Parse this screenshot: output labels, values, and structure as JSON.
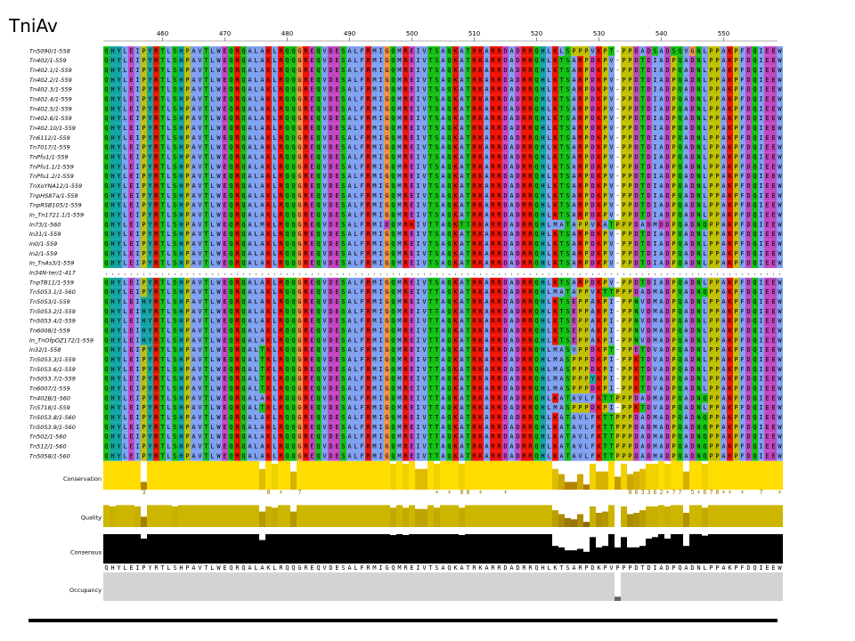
{
  "header": {
    "title": "TniAv"
  },
  "ruler": {
    "ticks": [
      460,
      470,
      480,
      490,
      500,
      510,
      520,
      530,
      540,
      550
    ]
  },
  "sequences": [
    {
      "name": "Tn5090/1-558",
      "residues": "QHYLEIPYRTLSHPAVTLWEQRQALAKLRQQGREQVDESALFRMIGQMREIVTSAQKATRKARRDADRRQHLKLSPPPVKPT-PPDADSADSQVGNLPPAKPFEQIEEW"
    },
    {
      "name": "Tn402/1-559",
      "residues": "QHYLEIPYRTLSHPAVTLWEQRQALAKLRQQGREQVDESALFRMIGQMREIVTSAQKATRKARRDADRRQHLKTSARPDKPV-PPDTDIADPQADNLPPAKPFDQIEEW"
    },
    {
      "name": "Tn402.1/1-559",
      "residues": "QHYLEIPYRTLSHPAVTLWEQRQALAKLRQQGREQVDESALFRMIGQMREIVTSAQKATRKARRDADRRQHLKTSARPDKPV-PPDTDIADPQADNLPPAKPFDQIEEW"
    },
    {
      "name": "Tn402.2/1-559",
      "residues": "QHYLEIPYRTLSHPAVTLWEQRQALAKLRQQGREQVDESALFRMIGQMREIVTSAQKATRKARRDADRRQHLKTSARPDKPV-PPDTDIADPQADNLPPAKPFDQIEEW"
    },
    {
      "name": "Tn402.3/1-559",
      "residues": "QHYLEIPYRTLSHPAVTLWEQRQALAKLRQQGREQVDESALFRMIGQMREIVTSAQKATRKARRDADRRQHLKTSARPDKPV-PPDTDIADPQADNLPPAKPFDQIEEW"
    },
    {
      "name": "Tn402.4/1-559",
      "residues": "QHYLEIPYRTLSHPAVTLWEQRQALAKLRQQGREQVDESALFRMIGQMREIVTSAQKATRKARRDADRRQHLKTSARPDKPV-PPDTDIADPQADNLPPAKPFDQIEEW"
    },
    {
      "name": "Tn402.5/1-559",
      "residues": "QHYLEIPYRTLSHPAVTLWEQRQALAKLRQQGREQVDESALFRMIGQMREIVTSAQKATRKARRDADRRQHLKTSARPDKPV-PPDTDIADPQADNLPPAKPFDQIEEW"
    },
    {
      "name": "Tn402.6/1-559",
      "residues": "QHYLEIPYRTLSHPAVTLWEQRQALAKLRQQGREQVDESALFRMIGQMREIVTSAQKATRKARRDADRRQHLKTSARPDKPV-PPDTDIADPQADNLPPAKPFDQIEEW"
    },
    {
      "name": "Tn402.10/1-559",
      "residues": "QHYLEIPYRTLSHPAVTLWEQRQALAKLRQQGREQVDESALFRMIGQMREIVTSAQKATRKARRDADRRQHLKTSARPDKPV-PPDTDIADPQADNLPPAKPFDQIEEW"
    },
    {
      "name": "Tn6112/1-559",
      "residues": "QHYLEIPYRTLSHPAVTLWEQRQALAKLRQQGREQVDESALFRMIGQMREIVTSAQKATRKARRDADRRQHLKTSARPDKPV-PPDTDIADPQADNLPPAKPFDQIEEW"
    },
    {
      "name": "Tn7017/1-559",
      "residues": "QHYLEIPYRTLSHPAVTLWEQRQALAKLRQQGREQVDESALFRMIGQMREIVTSAQKATRKARRDADRRQHLKTSARPDKPV-PPDTDIADPQADNLPPAKPFDQIEEW"
    },
    {
      "name": "TnPfu1/1-559",
      "residues": "QHYLEIPYRTLSHPAVTLWEQRQALAKLRQQGREQVDESALFRMIGQMREIVTSAQKATRKARRDADRRQHLKTSARPDKPV-PPDTDIADPQADNLPPAKPFDQIEEW"
    },
    {
      "name": "TnPfu1.1/1-559",
      "residues": "QHYLEIPYRTLSHPAVTLWEQRQALAKLRQQGREQVDESALFRMIGQMREIVTSAQKATRKARRDADRRQHLKTSARPDKPV-PPDTDIADPQADNLPPAKPFDQIEEW"
    },
    {
      "name": "TnPfu1.2/1-559",
      "residues": "QHYLEIPYRTLSHPAVTLWEQRQALAKLRQQGREQVDESALFRMIGQMREIVTSAQKATRKARRDADRRQHLKTSARPDKPV-PPDTDIADPQADNLPPAKPFDQIEEW"
    },
    {
      "name": "TnXoYNA12/1-559",
      "residues": "QHYLEIPYRTLSHPAVTLWEQRQALAKLRQQGREQVDESALFRMIGQMREIVTSAQKATRKARRDADRRQHLKTSARPDKPV-PPDTDIADPQADNLPPAKPFDQIEEW"
    },
    {
      "name": "TnpHS87a/1-559",
      "residues": "QHYLEIPYRTLSHPAVTLWEQRQALAKLRQQGREQVDESALFRMIGQMREIVTSAQKATRKARRDADRRQHLKTSARPDKPV-PPDTDIADPQADNLPPAKPFDQIEEW"
    },
    {
      "name": "TnpRSB105/1-559",
      "residues": "QHYLEIPYRTLSHPAVTLWEQRQALAKLRQQGREQVDESALFRMIGQMREIVTSAQKATRKARRDADRRQHLKTSARPDKPV-PPDTDIADPQADNLPPAKPFDQIEEW"
    },
    {
      "name": "In_Tn1721.1/1-559",
      "residues": "QHYLEIPYRTLSHPAVTLWEQRQALAKLRQQGREQVDESALFRMIGQMREIVTSAQKATRKARRDADRRQHLKTSARPDKPV-PPDTDIADPQADNLPPAKPFDQIEEW"
    },
    {
      "name": "In73/1-560",
      "residues": "QHYLEIPYRTLSHPAVTLWEQRQALMKLRQQGREQVDESALFRMIDQMRKIVTTAQKTTRKARRDADRRQHLMATAPPVKATPPPDADMDDPQADNQPPAKPFDQIEEW"
    },
    {
      "name": "In31/1-559",
      "residues": "QHYLEIPYRTLSHPAVTLWEQRQALAKLRQQGREQVDESALFRMIGQMREIVTSAQKATRKARRDADRRQHLKTSARPDKPV-PPDTDIADPQADNLPPAKPFDQIEEW"
    },
    {
      "name": "In0/1-559",
      "residues": "QHYLEIPYRTLSHPAVTLWEQRQALAKLRQQGREQVDESALFRMIGQMREIVTSAQKATRKARRDADRRQHLKTSARPDKPV-PPDTDIADPQADNLPPAKPFDQIEEW"
    },
    {
      "name": "In2/1-559",
      "residues": "QHYLEIPYRTLSHPAVTLWEQRQALAKLRQQGREQVDESALFRMIGQMREIVTSAQKATRKARRDADRRQHLKTSARPDKPV-PPDTDIADPQADNLPPAKPFDQIEEW"
    },
    {
      "name": "In_TnAs3/1-559",
      "residues": "QHYLEIPYRTLSHPAVTLWEQRQALAKLRQQGREQVDESALFRMIGQMREIVTSAQKATRKARRDADRRQHLKTSARPDKPV-PPDTDIADPQADNLPPAKPFDQIEEW"
    },
    {
      "name": "In34N-ter/1-417",
      "residues": "............................................................................................................."
    },
    {
      "name": "TnpTB11/1-559",
      "residues": "QHYLEIPYRTLSHPAVTLWEQRQALAKLRQQGREQVDESALFRMIGQMREIVTSAQKATRKARRDADRRQHLKTSARPDKPV-PPDTDIADPQADNLPPAKPFDQIEEW"
    },
    {
      "name": "Tn5053.1/1-560",
      "residues": "QHYLEIPYRTLSHPAVTLWEQRQALAKLRQQGREQVDESALFRMIGQMREIVTTAQKATRKARRDADRRQHLMATAPPVKTTPPPDADMADPQADNQPPAKPFDQIEEW"
    },
    {
      "name": "Tn5053/1-559",
      "residues": "QHYLEIHYRTLSHPAVTLWEQRQALAKLRQQGREQVDESALFRMIGQMREIVTTAQKATRKARRDADRRQHLKTSEPPAKPI-PPNVDMADPQADNLPPAKPFDQIEEW"
    },
    {
      "name": "Tn5053.2/1-559",
      "residues": "QHYLEIHYRTLSHPAVTLWEQRQALAKLRQQGREQVDESALFRMIGQMREIVTTAQKATRKARRDADRRQHLKTSEPPAKPI-PPNVDMADPQADNLPPAKPFDQIEEW"
    },
    {
      "name": "Tn5053.4/1-559",
      "residues": "QHYLEIHYRTLSHPAVTLWEQRQALAKLRQQGREQVDESALFRMIGQMREIVTTAQKATRKARRDADRRQHLKTSEPPAKPI-PPNVDMADPQADNLPPAKPFDQIEEW"
    },
    {
      "name": "Tn6008/1-559",
      "residues": "QHYLEIHYRTLSHPAVTLWEQRQALAKLRQQGREQVDESALFRMIGQMREIVTTAQKATRKARRDADRRQHLKTSEPPAKPI-PPNVDMADPQADNLPPAKPFDQIEEW"
    },
    {
      "name": "In_TnOfpOZ172/1-559",
      "residues": "QHYLEIHYRTLSHPAVTLWEQRQALAKLRQQGREQVDESALFRMIGQMREIVTTAQKATRKARRDADRRQHLKTSEPPAKPI-PPNVDMADPQADNLPPAKPFDQIEEW"
    },
    {
      "name": "In32/1-558",
      "residues": "QHYLEIPYRTLSHPAVTLWEQRQALTKLRQQGREQVDESALFRMIGQMREIVTTAQKATRKARRDADRRQHLMASVPPDKPT-PPETDVADPQADNLPPAKPFDQIEEW"
    },
    {
      "name": "Tn5053.3/1-559",
      "residues": "QHYLEIPYRTLSHPAVTLWEQRQALTKLRQQGREQVDESALFRMIGQMREIVTTAQKATRKARRDADRRQHLMASPPPDKPI-PPKTDVADPQADNLPPAKPFDQIEEW"
    },
    {
      "name": "Tn5053.6/1-559",
      "residues": "QHYLEIPYRTLSHPAVTLWEQRQALTKLRQQGREQVDESALFRMIGQMREIVTTAQKATRKARRDADRRQHLMASPPPDKPI-PPKTDVADPQADNLPPAKPFDQIEEW"
    },
    {
      "name": "Tn5053.7/1-559",
      "residues": "QHYLEIPYRTLSHPAVTLWEQRQALTKLRQQGREQVDESALFRMIGQMREIVTTAQKATRKARRDADRRQHLMASPPPYKPI-PPKTDVADPQADNLPPAKPFDQIEEW"
    },
    {
      "name": "Tn6007/1-559",
      "residues": "QHYLEIPYRTLSHPAVTLWEQRQALTKLRQQGREQVDESALFRMIGQMREIVTTAQKATRKARRDADRRQHLMASPPPDKPI-PPKTDVADPQADNLPPAKPFDQIEEW"
    },
    {
      "name": "Tn402B/1-560",
      "residues": "QHYLEIPYRTLSHPAVTLWEQRQALAKLRQQGREQVDESALFRMIGQMREIVTTAQKATRKARRDADRRQHLKATAVLFKTTPPPDADMADPQADNQPPAKPFDQIEEW"
    },
    {
      "name": "Tn5718/1-559",
      "residues": "QHYLEIPYRTLSHPAVTLWEQRQALTKLRQQGREQVDESALFRMIGQMREIVTTAQKATRKARRDADRRQHLMASPPPDKPI-PPKTDVADPQADNLPPAKPFDQIEEW"
    },
    {
      "name": "Tn5053.8/1-560",
      "residues": "QHYLEIPYRTLSHPAVTLWEQRQALAKLRQQGREQVDESALFRMIGQMREIVTTAQKATRKARRDADRRQHLKATAVLFKTTPPPDADMADPQADNQPPAKPFDQIEEW"
    },
    {
      "name": "Tn5053.9/1-560",
      "residues": "QHYLEIPYRTLSHPAVTLWEQRQALAKLRQQGREQVDESALFRMIGQMREIVTTAQKATRKARRDADRRQHLKATAVLFKTTPPPDADMADPQADNQPPAKPFDQIEEW"
    },
    {
      "name": "Tn502/1-560",
      "residues": "QHYLEIPYRTLSHPAVTLWEQRQALAKLRQQGREQVDESALFRMIGQMREIVTTAQKATRKARRDADRRQHLKATAVLFKTTPPPDADMADPQADNQPPAKPFDQIEEW"
    },
    {
      "name": "Tn512/1-560",
      "residues": "QHYLEIPYRTLSHPAVTLWEQRQALAKLRQQGREQVDESALFRMIGQMREIVTTAQKATRKARRDADRRQHLKATAVLFKTTPPPDADMADPQADNQPPAKPFDQIEEW"
    },
    {
      "name": "Tn5058/1-560",
      "residues": "QHYLEIPYRTLSHPAVTLWEQRQALAKLRQQGREQVDESALFRMIGQMREIVTTAQKATRKARRDADRRQHLKATAVLFKTTPPPDADMADPQADNQPPAKPFDQIEEW"
    }
  ],
  "annotations": {
    "conservation": {
      "label": "Conservation",
      "ylim": [
        0,
        11
      ],
      "values": [
        11,
        11,
        11,
        11,
        11,
        11,
        3,
        11,
        11,
        11,
        11,
        11,
        11,
        11,
        11,
        11,
        11,
        11,
        11,
        11,
        11,
        11,
        11,
        11,
        11,
        8,
        11,
        10,
        11,
        11,
        7,
        11,
        11,
        11,
        11,
        11,
        11,
        11,
        11,
        11,
        11,
        11,
        11,
        11,
        11,
        11,
        10,
        11,
        10,
        11,
        8,
        8,
        11,
        10,
        11,
        11,
        11,
        10,
        11,
        11,
        11,
        11,
        11,
        11,
        11,
        11,
        11,
        11,
        11,
        11,
        11,
        11,
        8,
        6,
        3,
        3,
        6,
        2,
        10,
        7,
        7,
        11,
        5,
        10,
        6,
        7,
        8,
        10,
        10,
        11,
        10,
        11,
        11,
        7,
        11,
        11,
        10,
        11,
        11,
        11,
        11,
        11,
        11,
        11,
        11,
        11,
        11,
        11,
        11
      ],
      "labels": "      3                   8 +  7                     + + 88 +   +                   863362+77 5+678++ +  7  +            "
    },
    "quality": {
      "label": "Quality",
      "ylim": [
        0,
        100
      ],
      "values": [
        85,
        80,
        85,
        85,
        85,
        80,
        40,
        85,
        85,
        85,
        85,
        80,
        85,
        85,
        85,
        85,
        85,
        85,
        85,
        85,
        85,
        85,
        85,
        85,
        85,
        60,
        80,
        75,
        85,
        85,
        60,
        85,
        85,
        85,
        85,
        85,
        85,
        85,
        85,
        85,
        85,
        85,
        85,
        85,
        85,
        85,
        75,
        85,
        75,
        85,
        70,
        70,
        85,
        75,
        85,
        85,
        85,
        75,
        85,
        85,
        85,
        85,
        85,
        85,
        85,
        85,
        85,
        85,
        85,
        85,
        85,
        85,
        65,
        50,
        35,
        30,
        50,
        20,
        80,
        55,
        60,
        85,
        0,
        80,
        50,
        55,
        65,
        80,
        80,
        85,
        80,
        85,
        85,
        55,
        85,
        85,
        75,
        85,
        85,
        85,
        85,
        85,
        85,
        85,
        85,
        85,
        85,
        85,
        85
      ]
    },
    "consensus": {
      "label": "Consensus",
      "ylim": [
        0,
        100
      ],
      "values": [
        100,
        100,
        100,
        100,
        100,
        100,
        85,
        100,
        100,
        100,
        100,
        100,
        100,
        100,
        100,
        100,
        100,
        100,
        100,
        100,
        100,
        100,
        100,
        100,
        100,
        80,
        100,
        100,
        100,
        100,
        100,
        100,
        100,
        100,
        100,
        100,
        100,
        100,
        100,
        100,
        100,
        100,
        100,
        100,
        100,
        100,
        97,
        100,
        97,
        100,
        100,
        100,
        100,
        100,
        100,
        100,
        100,
        97,
        100,
        100,
        100,
        100,
        100,
        100,
        100,
        100,
        100,
        100,
        100,
        100,
        100,
        100,
        60,
        55,
        45,
        45,
        50,
        40,
        90,
        55,
        60,
        100,
        55,
        90,
        55,
        55,
        60,
        85,
        90,
        100,
        85,
        100,
        100,
        60,
        100,
        100,
        95,
        100,
        100,
        100,
        100,
        100,
        100,
        100,
        100,
        100,
        100,
        100,
        100
      ],
      "sequence": "QHYLEIPYRTLSHPAVTLWEQRQALAKLRQQGREQVDESALFRMIGQMREIVTSAQKATRKARRDADRRQHLKTSARPDKPVPPPDTDIADPQADNLPPAKPFDQIEEW"
    },
    "occupancy": {
      "label": "Occupancy",
      "ylim": [
        0,
        100
      ],
      "values": [
        100,
        100,
        100,
        100,
        100,
        100,
        100,
        100,
        100,
        100,
        100,
        100,
        100,
        100,
        100,
        100,
        100,
        100,
        100,
        100,
        100,
        100,
        100,
        100,
        100,
        100,
        100,
        100,
        100,
        100,
        100,
        100,
        100,
        100,
        100,
        100,
        100,
        100,
        100,
        100,
        100,
        100,
        100,
        100,
        100,
        100,
        100,
        100,
        100,
        100,
        100,
        100,
        100,
        100,
        100,
        100,
        100,
        100,
        100,
        100,
        100,
        100,
        100,
        100,
        100,
        100,
        100,
        100,
        100,
        100,
        100,
        100,
        100,
        100,
        100,
        100,
        100,
        100,
        100,
        100,
        100,
        100,
        15,
        100,
        100,
        100,
        100,
        100,
        100,
        100,
        100,
        100,
        100,
        100,
        100,
        100,
        100,
        100,
        100,
        100,
        100,
        100,
        100,
        100,
        100,
        100,
        100,
        100,
        100
      ]
    }
  }
}
